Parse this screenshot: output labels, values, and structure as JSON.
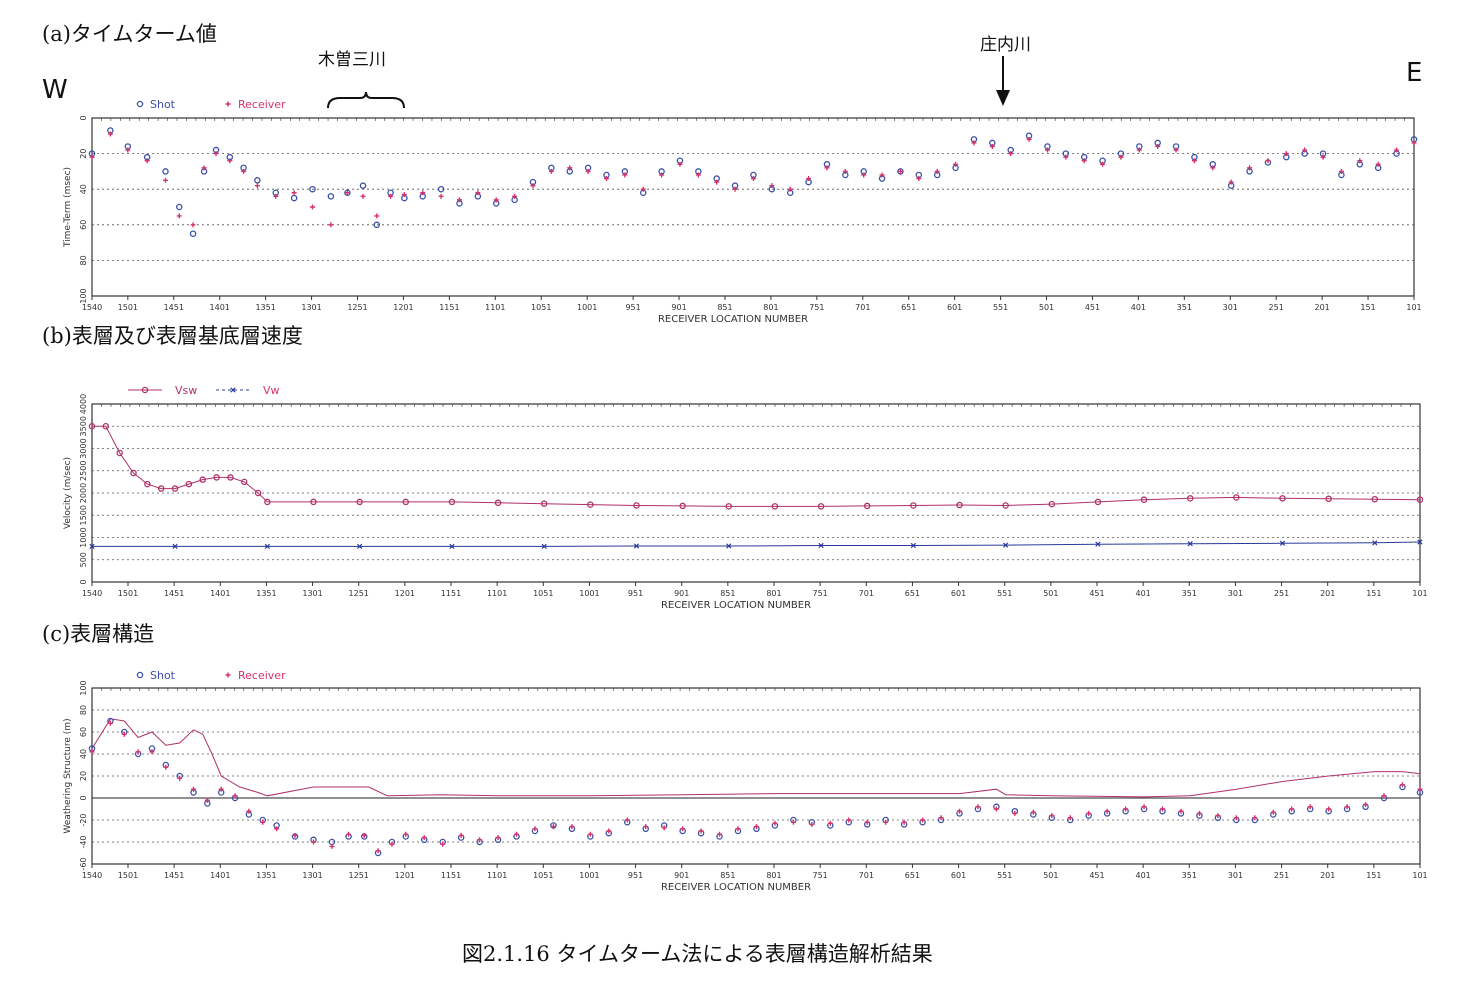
{
  "labels": {
    "panel_a_title": "(a)タイムターム値",
    "panel_b_title": "(b)表層及び表層基底層速度",
    "panel_c_title": "(c)表層構造",
    "west": "W",
    "east": "E",
    "annotation_kiso": "木曽三川",
    "annotation_shonai": "庄内川",
    "caption": "図2.1.16 タイムターム法による表層構造解析結果"
  },
  "colors": {
    "shot": "#3a4fa8",
    "receiver": "#d8326a",
    "vsw": "#b0306a",
    "vw": "#2a3a9a",
    "grid": "#555555"
  },
  "chart_data": [
    {
      "type": "scatter",
      "title": "",
      "xlabel": "RECEIVER LOCATION NUMBER",
      "ylabel": "Time-Term (msec)",
      "xlim": [
        1540,
        101
      ],
      "ylim": [
        100,
        0
      ],
      "yticks": [
        "0",
        "20",
        "40",
        "60",
        "80",
        "100"
      ],
      "xticks": [
        "1540",
        "1501",
        "1451",
        "1401",
        "1351",
        "1301",
        "1251",
        "1201",
        "1151",
        "1101",
        "1051",
        "1001",
        "951",
        "901",
        "851",
        "801",
        "751",
        "701",
        "651",
        "601",
        "551",
        "501",
        "451",
        "401",
        "351",
        "301",
        "251",
        "201",
        "151",
        "101"
      ],
      "grid": true,
      "legend_position": "top-left",
      "series": [
        {
          "name": "Shot",
          "marker": "circle",
          "x": [
            1540,
            1520,
            1501,
            1480,
            1460,
            1445,
            1430,
            1418,
            1405,
            1390,
            1375,
            1360,
            1340,
            1320,
            1300,
            1280,
            1262,
            1245,
            1230,
            1215,
            1200,
            1180,
            1160,
            1140,
            1120,
            1100,
            1080,
            1060,
            1040,
            1020,
            1000,
            980,
            960,
            940,
            920,
            900,
            880,
            860,
            840,
            820,
            800,
            780,
            760,
            740,
            720,
            700,
            680,
            660,
            640,
            620,
            600,
            580,
            560,
            540,
            520,
            500,
            480,
            460,
            440,
            420,
            400,
            380,
            360,
            340,
            320,
            300,
            280,
            260,
            240,
            220,
            200,
            180,
            160,
            140,
            120,
            101
          ],
          "y": [
            20,
            7,
            16,
            22,
            30,
            50,
            65,
            30,
            18,
            22,
            28,
            35,
            42,
            45,
            40,
            44,
            42,
            38,
            60,
            42,
            45,
            44,
            40,
            48,
            44,
            48,
            46,
            36,
            28,
            30,
            28,
            32,
            30,
            42,
            30,
            24,
            30,
            34,
            38,
            32,
            40,
            42,
            36,
            26,
            32,
            30,
            34,
            30,
            32,
            32,
            28,
            12,
            14,
            18,
            10,
            16,
            20,
            22,
            24,
            20,
            16,
            14,
            16,
            22,
            26,
            38,
            30,
            25,
            22,
            20,
            20,
            32,
            26,
            28,
            20,
            12
          ]
        },
        {
          "name": "Receiver",
          "marker": "plus",
          "x": [
            1540,
            1520,
            1501,
            1480,
            1460,
            1445,
            1430,
            1418,
            1405,
            1390,
            1375,
            1360,
            1340,
            1320,
            1300,
            1280,
            1262,
            1245,
            1230,
            1215,
            1200,
            1180,
            1160,
            1140,
            1120,
            1100,
            1080,
            1060,
            1040,
            1020,
            1000,
            980,
            960,
            940,
            920,
            900,
            880,
            860,
            840,
            820,
            800,
            780,
            760,
            740,
            720,
            700,
            680,
            660,
            640,
            620,
            600,
            580,
            560,
            540,
            520,
            500,
            480,
            460,
            440,
            420,
            400,
            380,
            360,
            340,
            320,
            300,
            280,
            260,
            240,
            220,
            200,
            180,
            160,
            140,
            120,
            101
          ],
          "y": [
            22,
            9,
            18,
            24,
            35,
            55,
            60,
            28,
            20,
            24,
            30,
            38,
            44,
            42,
            50,
            60,
            42,
            44,
            55,
            44,
            43,
            42,
            44,
            46,
            42,
            46,
            44,
            38,
            30,
            28,
            30,
            34,
            32,
            40,
            32,
            26,
            32,
            36,
            40,
            34,
            38,
            40,
            34,
            28,
            30,
            32,
            32,
            30,
            34,
            30,
            26,
            14,
            16,
            20,
            12,
            18,
            22,
            24,
            26,
            22,
            18,
            16,
            18,
            24,
            28,
            36,
            28,
            24,
            20,
            18,
            22,
            30,
            24,
            26,
            18,
            14
          ]
        }
      ]
    },
    {
      "type": "line",
      "title": "",
      "xlabel": "RECEIVER LOCATION NUMBER",
      "ylabel": "Velocity (m/sec)",
      "xlim": [
        1540,
        101
      ],
      "ylim": [
        0,
        4000
      ],
      "yticks": [
        "0",
        "500",
        "1000",
        "1500",
        "2000",
        "2500",
        "3000",
        "3500",
        "4000"
      ],
      "xticks": [
        "1540",
        "1501",
        "1451",
        "1401",
        "1351",
        "1301",
        "1251",
        "1201",
        "1151",
        "1101",
        "1051",
        "1001",
        "951",
        "901",
        "851",
        "801",
        "751",
        "701",
        "651",
        "601",
        "551",
        "501",
        "451",
        "401",
        "351",
        "301",
        "251",
        "201",
        "151",
        "101"
      ],
      "grid": true,
      "legend_position": "top-left",
      "series": [
        {
          "name": "Vsw",
          "marker": "circle",
          "x": [
            1540,
            1525,
            1510,
            1495,
            1480,
            1465,
            1450,
            1435,
            1420,
            1405,
            1390,
            1375,
            1360,
            1350,
            1300,
            1250,
            1200,
            1150,
            1100,
            1050,
            1000,
            950,
            900,
            850,
            800,
            750,
            700,
            650,
            600,
            550,
            500,
            450,
            400,
            350,
            300,
            250,
            200,
            150,
            101
          ],
          "y": [
            3500,
            3500,
            2900,
            2450,
            2200,
            2100,
            2100,
            2200,
            2300,
            2350,
            2350,
            2250,
            2000,
            1800,
            1800,
            1800,
            1800,
            1800,
            1780,
            1760,
            1740,
            1720,
            1710,
            1700,
            1700,
            1700,
            1710,
            1720,
            1730,
            1720,
            1750,
            1800,
            1850,
            1880,
            1900,
            1880,
            1870,
            1860,
            1850
          ]
        },
        {
          "name": "Vw",
          "marker": "star",
          "x": [
            1540,
            1450,
            1350,
            1250,
            1150,
            1050,
            950,
            850,
            750,
            650,
            550,
            450,
            350,
            250,
            150,
            101
          ],
          "y": [
            800,
            800,
            800,
            800,
            800,
            800,
            810,
            810,
            820,
            820,
            830,
            850,
            860,
            870,
            880,
            900
          ]
        }
      ]
    },
    {
      "type": "scatter",
      "title": "",
      "xlabel": "RECEIVER LOCATION NUMBER",
      "ylabel": "Weathering Structure (m)",
      "xlim": [
        1540,
        101
      ],
      "ylim": [
        -60,
        100
      ],
      "yticks": [
        "-60",
        "-40",
        "-20",
        "0",
        "20",
        "40",
        "60",
        "80",
        "100"
      ],
      "xticks": [
        "1540",
        "1501",
        "1451",
        "1401",
        "1351",
        "1301",
        "1251",
        "1201",
        "1151",
        "1101",
        "1051",
        "1001",
        "951",
        "901",
        "851",
        "801",
        "751",
        "701",
        "651",
        "601",
        "551",
        "501",
        "451",
        "401",
        "351",
        "301",
        "251",
        "201",
        "151",
        "101"
      ],
      "grid": true,
      "legend_position": "top-left",
      "elevation_line": {
        "x": [
          1540,
          1520,
          1505,
          1490,
          1475,
          1460,
          1445,
          1430,
          1420,
          1410,
          1400,
          1380,
          1360,
          1350,
          1300,
          1240,
          1220,
          1160,
          1100,
          1000,
          900,
          800,
          700,
          600,
          560,
          550,
          500,
          400,
          350,
          300,
          250,
          200,
          150,
          120,
          101
        ],
        "y": [
          45,
          72,
          70,
          55,
          60,
          48,
          50,
          62,
          58,
          40,
          20,
          10,
          5,
          2,
          10,
          10,
          2,
          3,
          2,
          2,
          3,
          4,
          4,
          4,
          8,
          3,
          2,
          1,
          2,
          8,
          15,
          20,
          24,
          24,
          22
        ]
      },
      "series": [
        {
          "name": "Shot",
          "marker": "circle",
          "x": [
            1540,
            1520,
            1505,
            1490,
            1475,
            1460,
            1445,
            1430,
            1415,
            1400,
            1385,
            1370,
            1355,
            1340,
            1320,
            1300,
            1280,
            1262,
            1245,
            1230,
            1215,
            1200,
            1180,
            1160,
            1140,
            1120,
            1100,
            1080,
            1060,
            1040,
            1020,
            1000,
            980,
            960,
            940,
            920,
            900,
            880,
            860,
            840,
            820,
            800,
            780,
            760,
            740,
            720,
            700,
            680,
            660,
            640,
            620,
            600,
            580,
            560,
            540,
            520,
            500,
            480,
            460,
            440,
            420,
            400,
            380,
            360,
            340,
            320,
            300,
            280,
            260,
            240,
            220,
            200,
            180,
            160,
            140,
            120,
            101
          ],
          "y": [
            45,
            70,
            60,
            40,
            45,
            30,
            20,
            5,
            -5,
            5,
            0,
            -15,
            -20,
            -25,
            -35,
            -38,
            -40,
            -35,
            -35,
            -50,
            -40,
            -35,
            -38,
            -40,
            -36,
            -40,
            -38,
            -35,
            -30,
            -25,
            -28,
            -35,
            -32,
            -22,
            -28,
            -25,
            -30,
            -32,
            -35,
            -30,
            -28,
            -25,
            -20,
            -22,
            -25,
            -22,
            -24,
            -20,
            -24,
            -22,
            -20,
            -14,
            -10,
            -8,
            -12,
            -15,
            -18,
            -20,
            -16,
            -14,
            -12,
            -10,
            -12,
            -14,
            -16,
            -18,
            -20,
            -20,
            -15,
            -12,
            -10,
            -12,
            -10,
            -8,
            0,
            10,
            5
          ]
        },
        {
          "name": "Receiver",
          "marker": "plus",
          "x": [
            1540,
            1520,
            1505,
            1490,
            1475,
            1460,
            1445,
            1430,
            1415,
            1400,
            1385,
            1370,
            1355,
            1340,
            1320,
            1300,
            1280,
            1262,
            1245,
            1230,
            1215,
            1200,
            1180,
            1160,
            1140,
            1120,
            1100,
            1080,
            1060,
            1040,
            1020,
            1000,
            980,
            960,
            940,
            920,
            900,
            880,
            860,
            840,
            820,
            800,
            780,
            760,
            740,
            720,
            700,
            680,
            660,
            640,
            620,
            600,
            580,
            560,
            540,
            520,
            500,
            480,
            460,
            440,
            420,
            400,
            380,
            360,
            340,
            320,
            300,
            280,
            260,
            240,
            220,
            200,
            180,
            160,
            140,
            120,
            101
          ],
          "y": [
            42,
            68,
            58,
            42,
            42,
            28,
            18,
            8,
            -2,
            8,
            2,
            -12,
            -22,
            -28,
            -34,
            -40,
            -44,
            -33,
            -34,
            -48,
            -42,
            -33,
            -36,
            -42,
            -34,
            -38,
            -36,
            -33,
            -28,
            -26,
            -26,
            -33,
            -30,
            -20,
            -26,
            -27,
            -28,
            -30,
            -33,
            -28,
            -26,
            -23,
            -22,
            -24,
            -23,
            -20,
            -22,
            -22,
            -22,
            -20,
            -18,
            -12,
            -8,
            -10,
            -14,
            -13,
            -16,
            -18,
            -14,
            -12,
            -10,
            -8,
            -10,
            -12,
            -14,
            -16,
            -18,
            -18,
            -13,
            -10,
            -8,
            -10,
            -8,
            -6,
            2,
            12,
            8
          ]
        }
      ]
    }
  ]
}
